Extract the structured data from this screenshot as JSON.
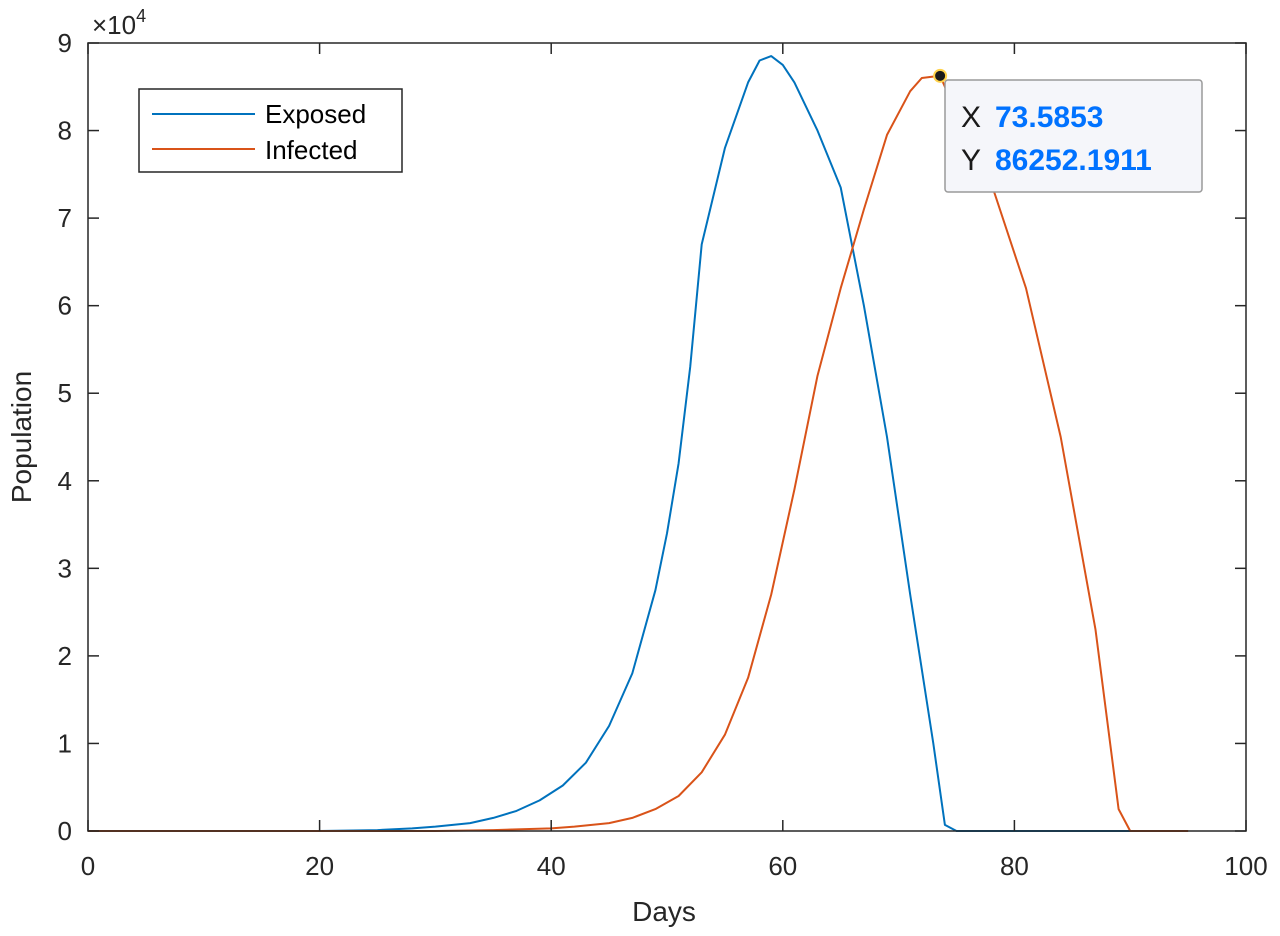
{
  "chart_data": {
    "type": "line",
    "xlabel": "Days",
    "ylabel": "Population",
    "y_exponent_label": "×10",
    "y_exponent_power": "4",
    "xlim": [
      0,
      100
    ],
    "ylim": [
      0,
      90000
    ],
    "x_ticks": [
      "0",
      "20",
      "40",
      "60",
      "80",
      "100"
    ],
    "y_ticks": [
      "0",
      "1",
      "2",
      "3",
      "4",
      "5",
      "6",
      "7",
      "8",
      "9"
    ],
    "grid": false,
    "legend_position": "top-left",
    "series": [
      {
        "name": "Exposed",
        "color": "#0072BD",
        "x": [
          0,
          10,
          20,
          25,
          28,
          30,
          33,
          35,
          37,
          39,
          41,
          43,
          45,
          47,
          49,
          50,
          51,
          52,
          53,
          55,
          57,
          58,
          59,
          60,
          61,
          63,
          65,
          67,
          69,
          71,
          73,
          74,
          75,
          76,
          80,
          90,
          95
        ],
        "y": [
          0,
          0,
          0,
          100,
          300,
          500,
          900,
          1500,
          2300,
          3500,
          5200,
          7800,
          12000,
          18000,
          27500,
          34000,
          42000,
          53000,
          67000,
          78000,
          85500,
          88000,
          88500,
          87500,
          85500,
          80000,
          73500,
          60000,
          45000,
          27000,
          10000,
          700,
          0,
          0,
          0,
          0,
          0
        ]
      },
      {
        "name": "Infected",
        "color": "#D95319",
        "x": [
          0,
          10,
          20,
          30,
          35,
          40,
          42,
          45,
          47,
          49,
          51,
          53,
          55,
          57,
          59,
          61,
          63,
          65,
          67,
          69,
          71,
          72,
          73.5853,
          75,
          78,
          81,
          84,
          87,
          89,
          90,
          91,
          95
        ],
        "y": [
          0,
          0,
          0,
          0,
          100,
          300,
          500,
          900,
          1500,
          2500,
          4000,
          6700,
          11000,
          17500,
          27000,
          39000,
          52000,
          62000,
          71000,
          79500,
          84500,
          86000,
          86252,
          82000,
          74000,
          62000,
          45000,
          23000,
          2500,
          0,
          0,
          0
        ]
      }
    ]
  },
  "datatip": {
    "x_key": "X",
    "x_value": "73.5853",
    "y_key": "Y",
    "y_value": "86252.1911",
    "value_color": "#0072FF",
    "point_x": 73.5853,
    "point_y": 86252.1911
  }
}
